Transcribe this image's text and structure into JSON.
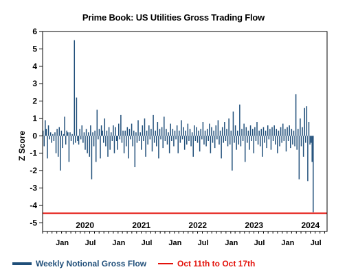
{
  "chart_data": {
    "type": "bar",
    "title": "Prime Book: US Utilities Gross Trading Flow",
    "ylabel": "Z Score",
    "ylim": [
      -5.5,
      6
    ],
    "yticks": [
      6,
      5,
      4,
      3,
      2,
      1,
      0,
      -1,
      -2,
      -3,
      -4,
      -5
    ],
    "year_labels": [
      "2020",
      "2021",
      "2022",
      "2023",
      "2024"
    ],
    "month_labels": [
      "Jan",
      "Jul",
      "Jan",
      "Jul",
      "Jan",
      "Jul",
      "Jan",
      "Jul",
      "Jan",
      "Jul"
    ],
    "x_range": [
      "2019-10-01",
      "2024-10-17"
    ],
    "reference_line": {
      "name": "Oct 11th to Oct 17th",
      "value": -4.45,
      "color": "#e3120b"
    },
    "series": [
      {
        "name": "Weekly Notional Gross Flow",
        "color": "#1f4e79",
        "start": "2019-10-04",
        "interval_days": 7,
        "values": [
          0.3,
          -0.6,
          0.9,
          0.4,
          -1.3,
          0.6,
          -0.2,
          0.2,
          -0.4,
          0.1,
          -0.3,
          0.2,
          -1.0,
          0.4,
          -1.2,
          0.5,
          -2.0,
          0.3,
          -0.7,
          0.1,
          1.1,
          -0.5,
          0.3,
          0.2,
          -1.5,
          0.2,
          -0.3,
          0.1,
          -0.5,
          5.5,
          -0.4,
          2.2,
          -0.3,
          -0.5,
          0.4,
          -0.2,
          0.6,
          -0.4,
          0.2,
          -0.8,
          0.4,
          -1.0,
          0.2,
          -1.2,
          0.6,
          -2.5,
          0.2,
          -0.6,
          0.3,
          -1.5,
          1.5,
          -0.2,
          0.4,
          -1.3,
          0.6,
          0.3,
          -0.4,
          1.0,
          -0.6,
          0.3,
          -1.2,
          0.5,
          -0.8,
          0.2,
          -0.3,
          0.6,
          -1.0,
          0.5,
          -0.3,
          -0.8,
          0.7,
          -0.2,
          1.2,
          -0.4,
          0.3,
          -1.0,
          0.3,
          -0.6,
          0.5,
          -1.3,
          0.4,
          -0.2,
          0.7,
          -0.6,
          0.3,
          -1.8,
          0.2,
          -0.4,
          0.9,
          -0.3,
          0.2,
          -0.8,
          0.6,
          -0.3,
          1.0,
          -1.2,
          0.3,
          -0.5,
          0.6,
          -0.2,
          0.4,
          -0.9,
          1.2,
          -0.4,
          0.3,
          -0.6,
          0.8,
          -1.3,
          0.4,
          -0.2,
          0.5,
          -0.7,
          1.1,
          -0.3,
          0.4,
          -0.5,
          0.2,
          -1.0,
          0.7,
          -0.3,
          0.4,
          -0.6,
          0.3,
          -0.2,
          0.6,
          -1.0,
          0.3,
          -0.4,
          0.9,
          -0.2,
          0.5,
          -0.8,
          0.3,
          -0.5,
          0.7,
          -0.3,
          0.4,
          -0.6,
          0.2,
          -1.2,
          0.6,
          -0.3,
          0.5,
          -0.4,
          0.3,
          -0.9,
          0.4,
          -0.2,
          0.8,
          -0.5,
          0.3,
          -0.6,
          0.4,
          -0.3,
          0.7,
          -1.0,
          0.5,
          -0.4,
          0.3,
          -0.7,
          0.6,
          -0.2,
          0.9,
          -0.5,
          0.3,
          -1.3,
          0.5,
          -0.4,
          0.8,
          -0.3,
          0.4,
          -0.6,
          1.0,
          -0.5,
          0.3,
          -2.0,
          1.4,
          -0.4,
          0.6,
          -0.8,
          0.3,
          -0.5,
          1.8,
          -0.6,
          0.4,
          -0.3,
          0.7,
          -1.5,
          0.5,
          -0.4,
          0.3,
          -0.8,
          0.6,
          -0.3,
          0.4,
          -1.0,
          0.5,
          -0.3,
          0.8,
          -0.5,
          0.3,
          -0.6,
          0.4,
          -1.2,
          0.5,
          -0.4,
          0.3,
          -0.7,
          0.6,
          -0.2,
          0.4,
          -0.8,
          0.5,
          -0.3,
          0.6,
          -0.5,
          0.4,
          -1.0,
          0.3,
          -0.6,
          0.5,
          -0.4,
          0.7,
          -0.3,
          0.4,
          -0.9,
          0.5,
          -0.3,
          0.6,
          -0.7,
          0.4,
          -0.5,
          0.3,
          -0.6,
          2.4,
          -0.8,
          0.4,
          -2.5,
          1.0,
          -0.6,
          0.5,
          -1.2,
          1.6,
          -0.4,
          1.7,
          -2.6,
          0.8,
          -0.5,
          -0.4,
          -1.5,
          -4.4
        ]
      }
    ]
  },
  "legend": {
    "items": [
      {
        "label": "Weekly Notional Gross Flow"
      },
      {
        "label": "Oct 11th to Oct 17th"
      }
    ]
  }
}
